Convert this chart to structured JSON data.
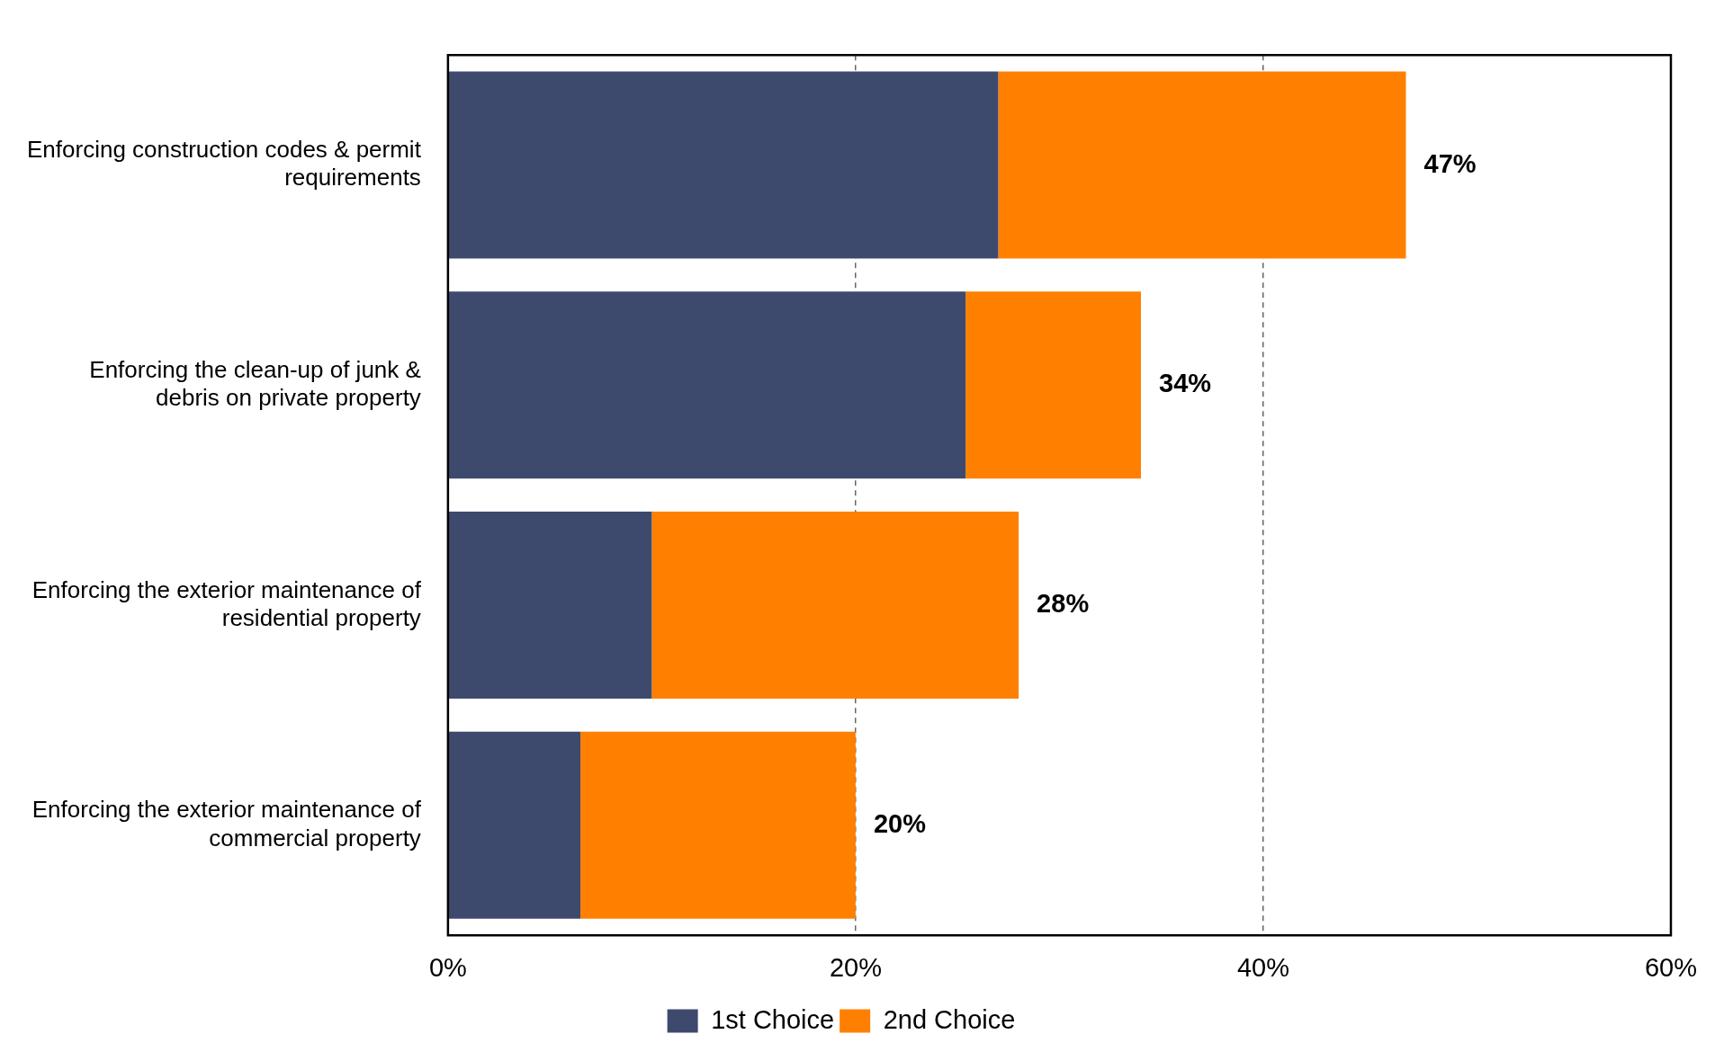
{
  "chart_data": {
    "type": "bar",
    "orientation": "horizontal",
    "stacked": true,
    "categories": [
      "Enforcing construction codes & permit requirements",
      "Enforcing the clean-up of junk & debris on private property",
      "Enforcing the exterior maintenance of residential property",
      "Enforcing the exterior maintenance of commercial property"
    ],
    "series": [
      {
        "name": "1st Choice",
        "color": "#3e4a6d",
        "values": [
          27,
          25.4,
          10,
          6.5
        ]
      },
      {
        "name": "2nd Choice",
        "color": "#ff8000",
        "values": [
          20,
          8.6,
          18,
          13.5
        ]
      }
    ],
    "totals": [
      "47%",
      "34%",
      "28%",
      "20%"
    ],
    "xlim": [
      0,
      60
    ],
    "xticks": [
      {
        "value": 0,
        "label": "0%"
      },
      {
        "value": 20,
        "label": "20%"
      },
      {
        "value": 40,
        "label": "40%"
      },
      {
        "value": 60,
        "label": "60%"
      }
    ],
    "grid": "x",
    "legend": "bottom"
  }
}
